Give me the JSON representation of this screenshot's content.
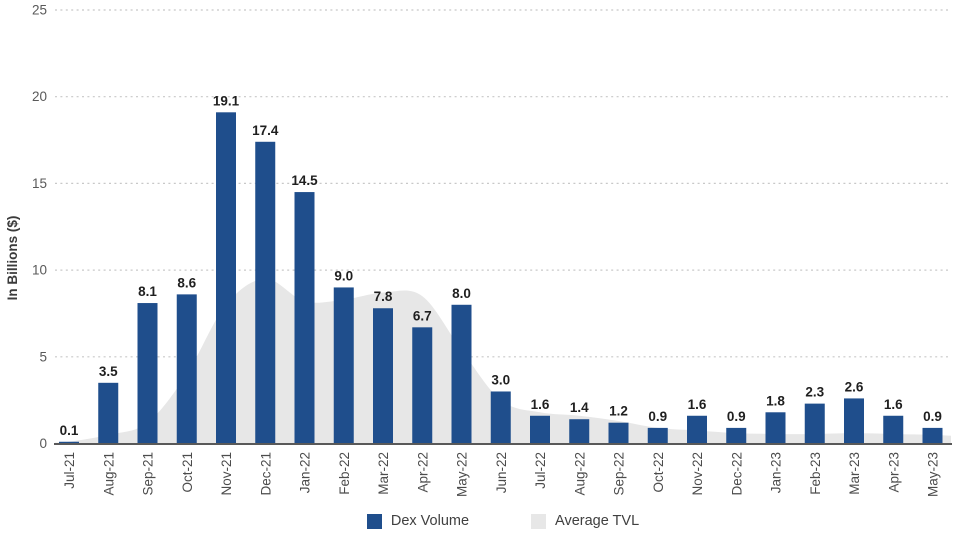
{
  "colors": {
    "bar": "#1f4e8c",
    "area": "#e7e7e7",
    "axis_line": "#595959",
    "gridline": "#c8c8c8",
    "tick_text": "#595959",
    "x_label_text": "#4c4c4c",
    "bar_label_text": "#1f1f1f",
    "y_title_text": "#3b3b3b",
    "background": "#ffffff"
  },
  "chart_data": {
    "type": "bar",
    "title": "",
    "xlabel": "",
    "ylabel": "In Billions ($)",
    "ylim": [
      0,
      25
    ],
    "yticks": [
      0,
      5,
      10,
      15,
      20,
      25
    ],
    "grid": "horizontal-dashed",
    "legend_position": "bottom-center",
    "categories": [
      "Jul-21",
      "Aug-21",
      "Sep-21",
      "Oct-21",
      "Nov-21",
      "Dec-21",
      "Jan-22",
      "Feb-22",
      "Mar-22",
      "Apr-22",
      "May-22",
      "Jun-22",
      "Jul-22",
      "Aug-22",
      "Sep-22",
      "Oct-22",
      "Nov-22",
      "Dec-22",
      "Jan-23",
      "Feb-23",
      "Mar-23",
      "Apr-23",
      "May-23"
    ],
    "series": [
      {
        "name": "Dex Volume",
        "type": "bar",
        "color": "#1f4e8c",
        "values": [
          0.1,
          3.5,
          8.1,
          8.6,
          19.1,
          17.4,
          14.5,
          9.0,
          7.8,
          6.7,
          8.0,
          3.0,
          1.6,
          1.4,
          1.2,
          0.9,
          1.6,
          0.9,
          1.8,
          2.3,
          2.6,
          1.6,
          0.9
        ],
        "data_labels": [
          "0.1",
          "3.5",
          "8.1",
          "8.6",
          "19.1",
          "17.4",
          "14.5",
          "9.0",
          "7.8",
          "6.7",
          "8.0",
          "3.0",
          "1.6",
          "1.4",
          "1.2",
          "0.9",
          "1.6",
          "0.9",
          "1.8",
          "2.3",
          "2.6",
          "1.6",
          "0.9"
        ]
      },
      {
        "name": "Average TVL",
        "type": "area",
        "color": "#e7e7e7",
        "values": [
          0.1,
          0.5,
          1.2,
          4.0,
          8.0,
          9.5,
          8.2,
          8.3,
          8.7,
          8.5,
          5.4,
          2.5,
          1.8,
          1.6,
          1.3,
          0.9,
          0.75,
          0.6,
          0.55,
          0.55,
          0.6,
          0.55,
          0.5
        ]
      }
    ]
  },
  "legend": {
    "items": [
      {
        "label": "Dex Volume"
      },
      {
        "label": "Average TVL"
      }
    ]
  }
}
